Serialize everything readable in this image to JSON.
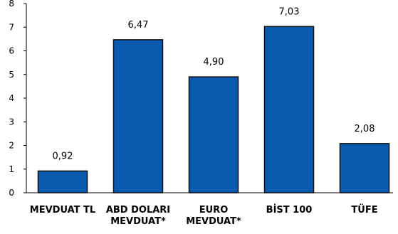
{
  "chart_data": {
    "type": "bar",
    "title": "",
    "xlabel": "",
    "ylabel": "",
    "categories": [
      [
        "MEVDUAT TL"
      ],
      [
        "ABD DOLARI",
        "MEVDUAT*"
      ],
      [
        "EURO",
        "MEVDUAT*"
      ],
      [
        "BİST 100"
      ],
      [
        "TÜFE"
      ]
    ],
    "values": [
      0.92,
      6.47,
      4.9,
      7.03,
      2.08
    ],
    "value_labels": [
      "0,92",
      "6,47",
      "4,90",
      "7,03",
      "2,08"
    ],
    "ylim": [
      0,
      8
    ],
    "yticks": [
      0,
      1,
      2,
      3,
      4,
      5,
      6,
      7,
      8
    ],
    "grid": false,
    "legend": "none",
    "colors": {
      "bar_fill": "#0a5bb0",
      "bar_stroke": "#111111",
      "axis": "#000000"
    }
  }
}
